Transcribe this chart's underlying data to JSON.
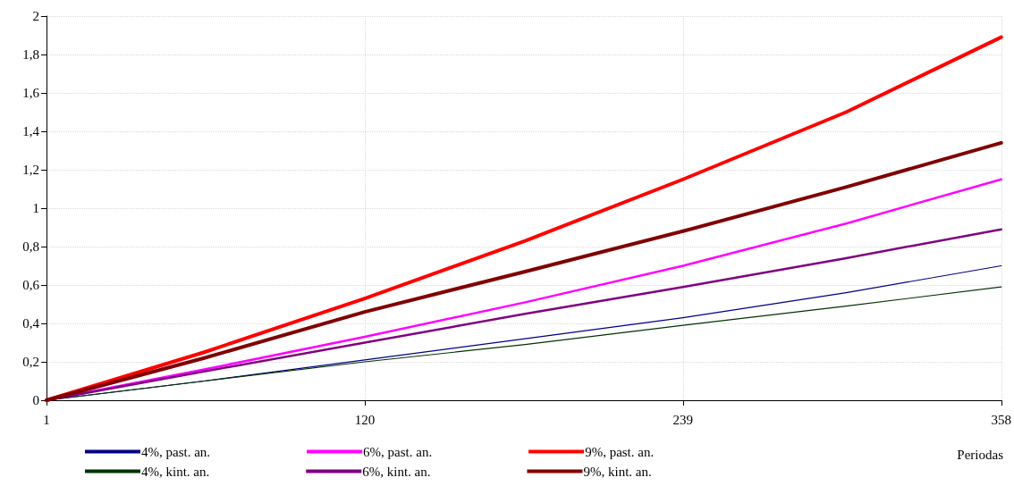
{
  "chart_data": {
    "type": "line",
    "xlabel": "Periodas",
    "x": [
      1,
      60,
      120,
      180,
      239,
      300,
      358
    ],
    "series": [
      {
        "name": "4%, past. an.",
        "color": "#000080",
        "values": [
          0,
          0.1,
          0.21,
          0.32,
          0.43,
          0.56,
          0.7
        ]
      },
      {
        "name": "6%, past. an.",
        "color": "#ff00ff",
        "values": [
          0,
          0.16,
          0.33,
          0.51,
          0.7,
          0.92,
          1.15
        ]
      },
      {
        "name": "9%, past. an.",
        "color": "#ff0000",
        "values": [
          0,
          0.25,
          0.53,
          0.83,
          1.15,
          1.5,
          1.89
        ]
      },
      {
        "name": "4%, kint. an.",
        "color": "#003300",
        "values": [
          0,
          0.1,
          0.2,
          0.29,
          0.39,
          0.49,
          0.59
        ]
      },
      {
        "name": "6%, kint. an.",
        "color": "#800080",
        "values": [
          0,
          0.15,
          0.3,
          0.45,
          0.59,
          0.74,
          0.89
        ]
      },
      {
        "name": "9%, kint. an.",
        "color": "#800000",
        "values": [
          0,
          0.22,
          0.46,
          0.67,
          0.88,
          1.11,
          1.34
        ]
      }
    ],
    "xlim": [
      1,
      358
    ],
    "xticks": [
      1,
      120,
      239,
      358
    ],
    "ylim": [
      0,
      2
    ],
    "yticks": [
      0,
      {
        "value": 0.2,
        "label": "0,2"
      },
      {
        "value": 0.4,
        "label": "0,4"
      },
      {
        "value": 0.6,
        "label": "0,6"
      },
      {
        "value": 0.8,
        "label": "0,8"
      },
      1,
      {
        "value": 1.2,
        "label": "1,2"
      },
      {
        "value": 1.4,
        "label": "1,4"
      },
      {
        "value": 1.6,
        "label": "1,6"
      },
      {
        "value": 1.8,
        "label": "1,8"
      },
      2
    ],
    "grid": true,
    "legend": "bottom",
    "marker": "none",
    "line_style": "solid"
  }
}
